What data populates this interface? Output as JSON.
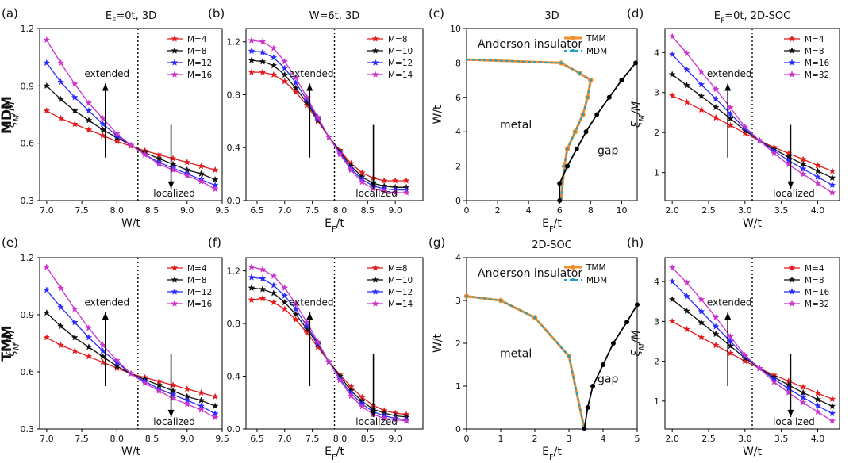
{
  "figure": {
    "row_labels": [
      "MDM",
      "TMM"
    ],
    "annotations": {
      "extended": "extended",
      "localized": "localized",
      "anderson": "Anderson insulator",
      "metal": "metal",
      "gap": "gap"
    }
  },
  "colors": {
    "M4": "#e41a1c",
    "M8": "#111111",
    "M12": "#2b2bff",
    "M16": "#cc33cc",
    "TMM": "#f28e2b",
    "MDM": "#1f9fbf"
  },
  "chart_data": [
    {
      "id": "a",
      "panel": "(a)",
      "title": "E_F=0t, 3D",
      "type": "line",
      "xlabel": "W/t",
      "ylabel": "ξ_M/M",
      "xlim": [
        6.9,
        9.5
      ],
      "ylim": [
        0.3,
        1.2
      ],
      "xticks": [
        "7.0",
        "7.5",
        "8.0",
        "8.5",
        "9.0",
        "9.5"
      ],
      "yticks": [
        "0.3",
        "0.6",
        "0.9",
        "1.2"
      ],
      "vline": 8.3,
      "x": [
        7.0,
        7.2,
        7.4,
        7.6,
        7.8,
        8.0,
        8.2,
        8.4,
        8.6,
        8.8,
        9.0,
        9.2,
        9.4
      ],
      "series": [
        {
          "name": "M=4",
          "color": "#e41a1c",
          "values": [
            0.77,
            0.73,
            0.7,
            0.67,
            0.64,
            0.61,
            0.585,
            0.56,
            0.54,
            0.52,
            0.5,
            0.48,
            0.46
          ]
        },
        {
          "name": "M=8",
          "color": "#111111",
          "values": [
            0.9,
            0.83,
            0.77,
            0.72,
            0.67,
            0.63,
            0.59,
            0.55,
            0.52,
            0.49,
            0.46,
            0.44,
            0.41
          ]
        },
        {
          "name": "M=12",
          "color": "#2b2bff",
          "values": [
            1.02,
            0.92,
            0.84,
            0.77,
            0.7,
            0.64,
            0.59,
            0.54,
            0.5,
            0.47,
            0.44,
            0.41,
            0.38
          ]
        },
        {
          "name": "M=16",
          "color": "#cc33cc",
          "values": [
            1.14,
            1.02,
            0.91,
            0.81,
            0.73,
            0.65,
            0.59,
            0.54,
            0.49,
            0.46,
            0.43,
            0.4,
            0.36
          ]
        }
      ],
      "annotations": {
        "extended": "extended",
        "localized": "localized"
      }
    },
    {
      "id": "b",
      "panel": "(b)",
      "title": "W=6t, 3D",
      "type": "line",
      "xlabel": "E_F/t",
      "ylabel": "",
      "xlim": [
        6.3,
        9.5
      ],
      "ylim": [
        0.0,
        1.3
      ],
      "xticks": [
        "6.5",
        "7.0",
        "7.5",
        "8.0",
        "8.5",
        "9.0"
      ],
      "yticks": [
        "0.0",
        "0.4",
        "0.8",
        "1.2"
      ],
      "vline": 7.9,
      "x": [
        6.4,
        6.6,
        6.8,
        7.0,
        7.2,
        7.4,
        7.6,
        7.8,
        8.0,
        8.2,
        8.4,
        8.6,
        8.8,
        9.0,
        9.2
      ],
      "series": [
        {
          "name": "M=8",
          "color": "#e41a1c",
          "values": [
            0.97,
            0.97,
            0.95,
            0.9,
            0.82,
            0.72,
            0.6,
            0.48,
            0.38,
            0.28,
            0.21,
            0.17,
            0.15,
            0.15,
            0.15
          ]
        },
        {
          "name": "M=10",
          "color": "#111111",
          "values": [
            1.06,
            1.05,
            1.02,
            0.95,
            0.85,
            0.74,
            0.61,
            0.48,
            0.37,
            0.26,
            0.18,
            0.13,
            0.11,
            0.1,
            0.1
          ]
        },
        {
          "name": "M=12",
          "color": "#2b2bff",
          "values": [
            1.13,
            1.12,
            1.08,
            1.0,
            0.89,
            0.76,
            0.62,
            0.48,
            0.36,
            0.24,
            0.16,
            0.11,
            0.09,
            0.08,
            0.08
          ]
        },
        {
          "name": "M=14",
          "color": "#cc33cc",
          "values": [
            1.21,
            1.2,
            1.15,
            1.05,
            0.93,
            0.78,
            0.63,
            0.48,
            0.35,
            0.23,
            0.14,
            0.09,
            0.07,
            0.06,
            0.06
          ]
        }
      ],
      "annotations": {
        "extended": "extended",
        "localized": "localized"
      }
    },
    {
      "id": "c",
      "panel": "(c)",
      "title": "3D",
      "type": "phase",
      "xlabel": "E_F/t",
      "ylabel": "W/t",
      "xlim": [
        0,
        11
      ],
      "ylim": [
        0,
        10
      ],
      "xticks": [
        "0",
        "2",
        "4",
        "6",
        "8",
        "10"
      ],
      "yticks": [
        "0",
        "2",
        "4",
        "6",
        "8",
        "10"
      ],
      "boundary_x": [
        0,
        6.1,
        7.3,
        8.0,
        7.8,
        7.5,
        7.0,
        6.5,
        6.3,
        6.1
      ],
      "boundary_y": [
        8.2,
        8.0,
        7.4,
        7.0,
        6.0,
        5.0,
        4.0,
        3.0,
        2.0,
        0.0
      ],
      "boundary_markers": [
        1,
        2,
        3,
        4,
        5,
        6,
        7,
        8
      ],
      "gap_x": [
        6.0,
        6.0,
        6.5,
        7.1,
        7.7,
        8.4,
        9.2,
        10.0,
        10.9
      ],
      "gap_y": [
        0,
        1,
        2,
        3,
        4,
        5,
        6,
        7,
        8
      ],
      "legend": [
        "TMM",
        "MDM"
      ],
      "annotations": {
        "anderson": "Anderson insulator",
        "metal": "metal",
        "gap": "gap"
      }
    },
    {
      "id": "d",
      "panel": "(d)",
      "title": "E_F=0t, 2D-SOC",
      "type": "line",
      "xlabel": "W/t",
      "ylabel": "ξ_M/M",
      "xlim": [
        1.9,
        4.3
      ],
      "ylim": [
        0.3,
        4.6
      ],
      "xticks": [
        "2.0",
        "2.5",
        "3.0",
        "3.5",
        "4.0"
      ],
      "yticks": [
        "1",
        "2",
        "3",
        "4"
      ],
      "vline": 3.1,
      "x": [
        2.0,
        2.2,
        2.4,
        2.6,
        2.8,
        3.0,
        3.2,
        3.4,
        3.6,
        3.8,
        4.0,
        4.2
      ],
      "series": [
        {
          "name": "M=4",
          "color": "#e41a1c",
          "values": [
            2.92,
            2.76,
            2.57,
            2.37,
            2.18,
            1.98,
            1.8,
            1.63,
            1.48,
            1.33,
            1.18,
            1.04
          ]
        },
        {
          "name": "M=8",
          "color": "#111111",
          "values": [
            3.45,
            3.18,
            2.91,
            2.63,
            2.35,
            2.05,
            1.8,
            1.58,
            1.39,
            1.21,
            1.04,
            0.87
          ]
        },
        {
          "name": "M=16",
          "color": "#2b2bff",
          "values": [
            3.95,
            3.57,
            3.2,
            2.84,
            2.47,
            2.1,
            1.8,
            1.54,
            1.3,
            1.09,
            0.89,
            0.69
          ]
        },
        {
          "name": "M=32",
          "color": "#cc33cc",
          "values": [
            4.4,
            3.98,
            3.52,
            3.08,
            2.62,
            2.14,
            1.8,
            1.48,
            1.2,
            0.96,
            0.73,
            0.5
          ]
        }
      ],
      "annotations": {
        "extended": "extended",
        "localized": "localized"
      }
    },
    {
      "id": "e",
      "panel": "(e)",
      "title": "",
      "type": "line",
      "xlabel": "W/t",
      "ylabel": "ξ_M/M",
      "xlim": [
        6.9,
        9.5
      ],
      "ylim": [
        0.3,
        1.2
      ],
      "xticks": [
        "7.0",
        "7.5",
        "8.0",
        "8.5",
        "9.0",
        "9.5"
      ],
      "yticks": [
        "0.3",
        "0.6",
        "0.9",
        "1.2"
      ],
      "vline": 8.3,
      "x": [
        7.0,
        7.2,
        7.4,
        7.6,
        7.8,
        8.0,
        8.2,
        8.4,
        8.6,
        8.8,
        9.0,
        9.2,
        9.4
      ],
      "series": [
        {
          "name": "M=4",
          "color": "#e41a1c",
          "values": [
            0.78,
            0.74,
            0.71,
            0.68,
            0.65,
            0.62,
            0.59,
            0.57,
            0.55,
            0.53,
            0.51,
            0.49,
            0.47
          ]
        },
        {
          "name": "M=8",
          "color": "#111111",
          "values": [
            0.91,
            0.84,
            0.78,
            0.73,
            0.68,
            0.63,
            0.59,
            0.56,
            0.53,
            0.5,
            0.47,
            0.45,
            0.42
          ]
        },
        {
          "name": "M=12",
          "color": "#2b2bff",
          "values": [
            1.03,
            0.94,
            0.86,
            0.78,
            0.71,
            0.65,
            0.59,
            0.55,
            0.51,
            0.48,
            0.45,
            0.42,
            0.38
          ]
        },
        {
          "name": "M=16",
          "color": "#cc33cc",
          "values": [
            1.15,
            1.04,
            0.93,
            0.83,
            0.74,
            0.66,
            0.59,
            0.54,
            0.5,
            0.46,
            0.43,
            0.4,
            0.36
          ]
        }
      ],
      "annotations": {
        "extended": "extended",
        "localized": "localized"
      }
    },
    {
      "id": "f",
      "panel": "(f)",
      "title": "",
      "type": "line",
      "xlabel": "E_F/t",
      "ylabel": "",
      "xlim": [
        6.3,
        9.5
      ],
      "ylim": [
        0.0,
        1.3
      ],
      "xticks": [
        "6.5",
        "7.0",
        "7.5",
        "8.0",
        "8.5",
        "9.0"
      ],
      "yticks": [
        "0.0",
        "0.4",
        "0.8",
        "1.2"
      ],
      "vline": 7.9,
      "x": [
        6.4,
        6.6,
        6.8,
        7.0,
        7.2,
        7.4,
        7.6,
        7.8,
        8.0,
        8.2,
        8.4,
        8.6,
        8.8,
        9.0,
        9.2
      ],
      "series": [
        {
          "name": "M=8",
          "color": "#e41a1c",
          "values": [
            0.98,
            0.99,
            0.96,
            0.91,
            0.83,
            0.73,
            0.62,
            0.51,
            0.41,
            0.32,
            0.24,
            0.18,
            0.14,
            0.12,
            0.11
          ]
        },
        {
          "name": "M=10",
          "color": "#111111",
          "values": [
            1.07,
            1.06,
            1.03,
            0.96,
            0.87,
            0.76,
            0.64,
            0.51,
            0.4,
            0.29,
            0.21,
            0.15,
            0.12,
            0.1,
            0.09
          ]
        },
        {
          "name": "M=12",
          "color": "#2b2bff",
          "values": [
            1.15,
            1.14,
            1.09,
            1.01,
            0.91,
            0.78,
            0.65,
            0.51,
            0.38,
            0.27,
            0.19,
            0.13,
            0.1,
            0.08,
            0.07
          ]
        },
        {
          "name": "M=14",
          "color": "#cc33cc",
          "values": [
            1.23,
            1.21,
            1.16,
            1.07,
            0.95,
            0.81,
            0.66,
            0.51,
            0.37,
            0.25,
            0.17,
            0.11,
            0.08,
            0.07,
            0.06
          ]
        }
      ],
      "annotations": {
        "extended": "extended",
        "localized": "localized"
      }
    },
    {
      "id": "g",
      "panel": "(g)",
      "title": "2D-SOC",
      "type": "phase",
      "xlabel": "E_F/t",
      "ylabel": "W/t",
      "xlim": [
        0,
        5
      ],
      "ylim": [
        0,
        4
      ],
      "xticks": [
        "0",
        "1",
        "2",
        "3",
        "4",
        "5"
      ],
      "yticks": [
        "0",
        "1",
        "2",
        "3",
        "4"
      ],
      "boundary_x": [
        0,
        1,
        2,
        3,
        3.45
      ],
      "boundary_y": [
        3.1,
        3.0,
        2.6,
        1.7,
        0.0
      ],
      "boundary_markers": [
        0,
        1,
        2,
        3
      ],
      "gap_x": [
        3.45,
        3.55,
        3.7,
        4.0,
        4.3,
        4.7,
        5.0
      ],
      "gap_y": [
        0.0,
        0.5,
        1.0,
        1.5,
        2.0,
        2.5,
        2.9
      ],
      "legend": [
        "TMM",
        "MDM"
      ],
      "annotations": {
        "anderson": "Anderson insulator",
        "metal": "metal",
        "gap": "gap"
      }
    },
    {
      "id": "h",
      "panel": "(h)",
      "title": "",
      "type": "line",
      "xlabel": "W/t",
      "ylabel": "ξ_M/M",
      "xlim": [
        1.9,
        4.3
      ],
      "ylim": [
        0.3,
        4.6
      ],
      "xticks": [
        "2.0",
        "2.5",
        "3.0",
        "3.5",
        "4.0"
      ],
      "yticks": [
        "1",
        "2",
        "3",
        "4"
      ],
      "vline": 3.1,
      "x": [
        2.0,
        2.2,
        2.4,
        2.6,
        2.8,
        3.0,
        3.2,
        3.4,
        3.6,
        3.8,
        4.0,
        4.2
      ],
      "series": [
        {
          "name": "M=4",
          "color": "#e41a1c",
          "values": [
            3.0,
            2.8,
            2.6,
            2.4,
            2.2,
            2.0,
            1.82,
            1.65,
            1.5,
            1.35,
            1.2,
            1.05
          ]
        },
        {
          "name": "M=8",
          "color": "#111111",
          "values": [
            3.55,
            3.26,
            2.97,
            2.68,
            2.38,
            2.08,
            1.82,
            1.6,
            1.4,
            1.21,
            1.04,
            0.87
          ]
        },
        {
          "name": "M=16",
          "color": "#2b2bff",
          "values": [
            4.0,
            3.63,
            3.25,
            2.87,
            2.5,
            2.12,
            1.82,
            1.55,
            1.31,
            1.09,
            0.88,
            0.69
          ]
        },
        {
          "name": "M=32",
          "color": "#cc33cc",
          "values": [
            4.35,
            3.97,
            3.55,
            3.1,
            2.62,
            2.15,
            1.82,
            1.48,
            1.21,
            0.96,
            0.73,
            0.5
          ]
        }
      ],
      "annotations": {
        "extended": "extended",
        "localized": "localized"
      }
    }
  ]
}
